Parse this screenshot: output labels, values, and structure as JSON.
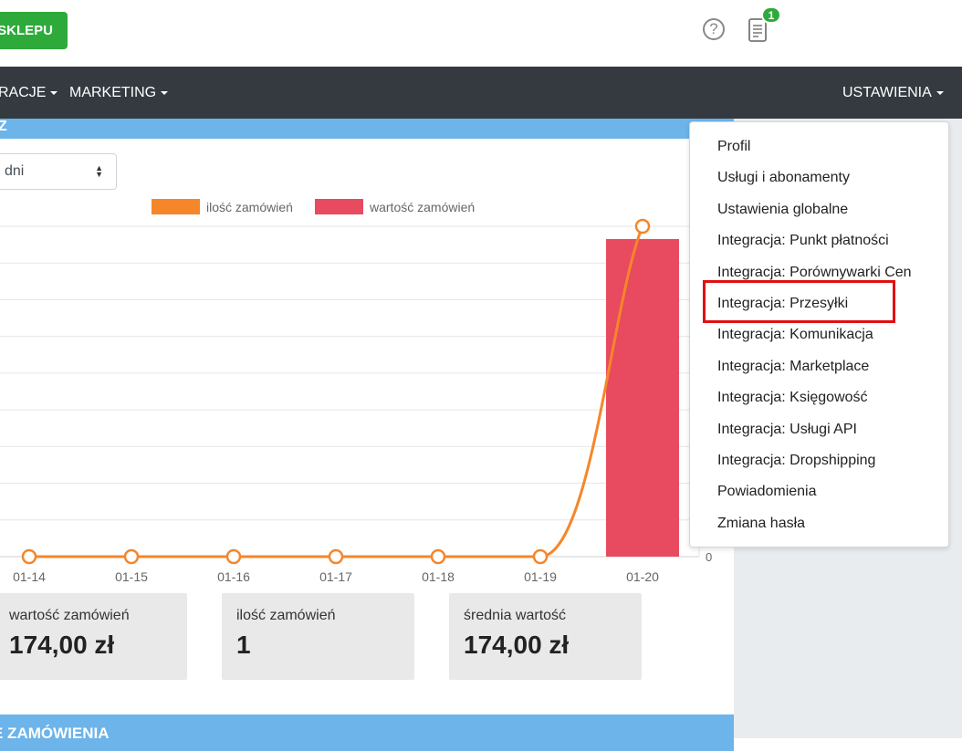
{
  "header": {
    "shop_button": "SKLEPU",
    "help_icon": "?",
    "notification_count": "1"
  },
  "nav": {
    "items": [
      "RACJE",
      "MARKETING"
    ],
    "settings": "USTAWIENIA"
  },
  "filter": {
    "period_value": "dni"
  },
  "chart_data": {
    "type": "bar+line",
    "categories": [
      "01-14",
      "01-15",
      "01-16",
      "01-17",
      "01-18",
      "01-19",
      "01-20"
    ],
    "series": [
      {
        "name": "ilość zamówień",
        "type": "line",
        "color": "#f5862a",
        "values": [
          0,
          0,
          0,
          0,
          0,
          0,
          1
        ]
      },
      {
        "name": "wartość zamówień",
        "type": "bar",
        "color": "#e84a5f",
        "values": [
          0,
          0,
          0,
          0,
          0,
          0,
          174
        ]
      }
    ],
    "y_right_tick": "0",
    "grid": true,
    "legend_position": "top"
  },
  "stats": [
    {
      "label": "wartość zamówień",
      "value": "174,00 zł"
    },
    {
      "label": "ilość zamówień",
      "value": "1"
    },
    {
      "label": "średnia wartość",
      "value": "174,00 zł"
    }
  ],
  "second_panel_title": "E ZAMÓWIENIA",
  "settings_menu": {
    "items": [
      "Profil",
      "Usługi i abonamenty",
      "Ustawienia globalne",
      "Integracja: Punkt płatności",
      "Integracja: Porównywarki Cen",
      "Integracja: Przesyłki",
      "Integracja: Komunikacja",
      "Integracja: Marketplace",
      "Integracja: Księgowość",
      "Integracja: Usługi API",
      "Integracja: Dropshipping",
      "Powiadomienia",
      "Zmiana hasła"
    ],
    "highlighted": "Integracja: Przesyłki"
  }
}
